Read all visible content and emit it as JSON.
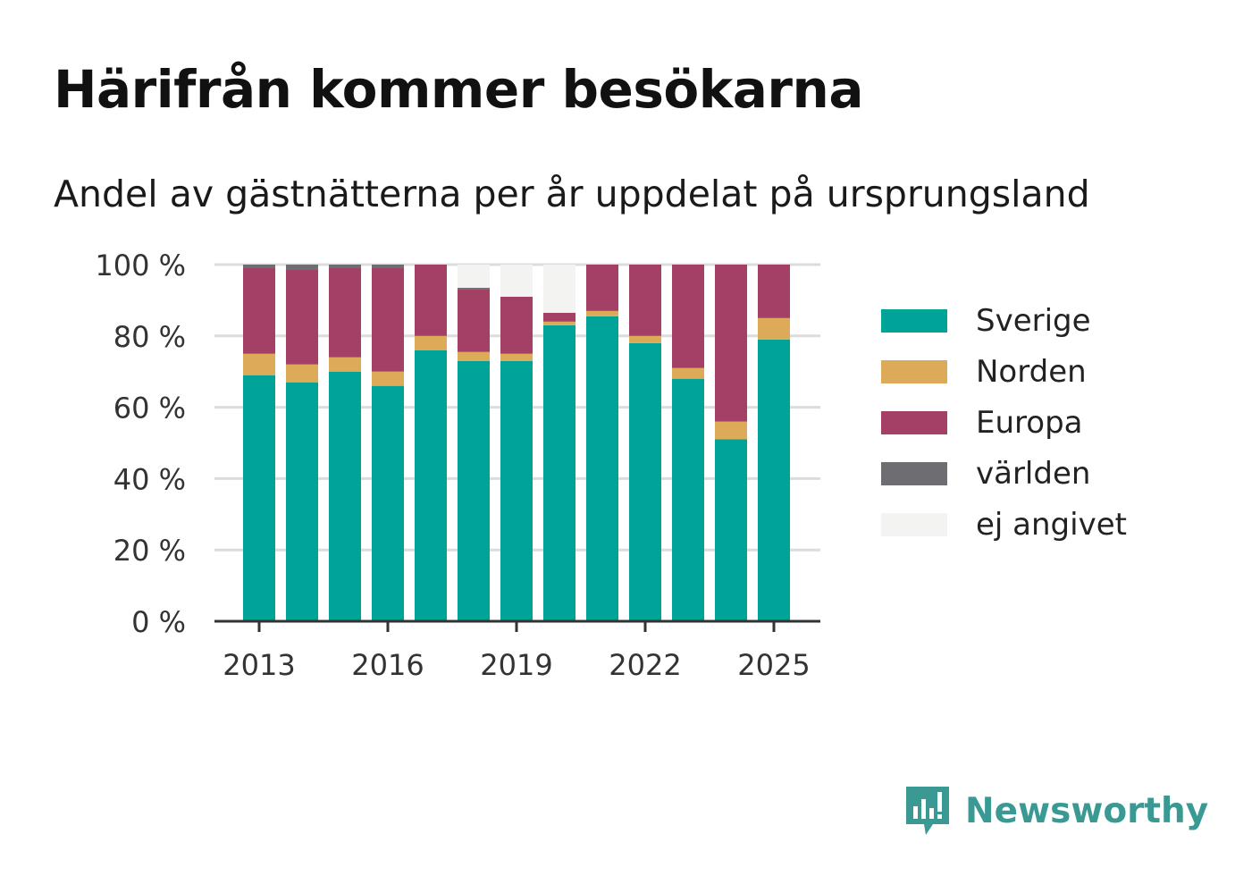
{
  "title": "Härifrån kommer besökarna",
  "subtitle": "Andel av gästnätterna per år uppdelat på ursprungsland",
  "brand": {
    "name": "Newsworthy",
    "logo_icon": "bar-chart-speech-bubble-icon",
    "color": "#3a9a93"
  },
  "chart_data": {
    "type": "bar",
    "stacked": true,
    "categories": [
      "2013",
      "2014",
      "2015",
      "2016",
      "2017",
      "2018",
      "2019",
      "2020",
      "2021",
      "2022",
      "2023",
      "2024",
      "2025"
    ],
    "x_tick_labels": [
      "2013",
      "2016",
      "2019",
      "2022",
      "2025"
    ],
    "y_tick_labels": [
      "0 %",
      "20 %",
      "40 %",
      "60 %",
      "80 %",
      "100 %"
    ],
    "ylim": [
      0,
      100
    ],
    "grid": true,
    "legend_position": "right",
    "series": [
      {
        "name": "Sverige",
        "color": "#00a398",
        "values": [
          69,
          67,
          70,
          66,
          76,
          73,
          73,
          83,
          85.5,
          78,
          68,
          51,
          79
        ]
      },
      {
        "name": "Norden",
        "color": "#dcaa58",
        "values": [
          6,
          5,
          4,
          4,
          4,
          2.5,
          2,
          1,
          1.5,
          2,
          3,
          5,
          6
        ]
      },
      {
        "name": "Europa",
        "color": "#a43f65",
        "values": [
          24,
          26.5,
          25,
          29,
          20,
          17.5,
          16,
          2.5,
          13,
          20,
          29,
          44,
          15
        ]
      },
      {
        "name": "världen",
        "color": "#6e6e72",
        "values": [
          1,
          1.5,
          1,
          1,
          0,
          0.5,
          0,
          0,
          0,
          0,
          0,
          0,
          0
        ]
      },
      {
        "name": "ej angivet",
        "color": "#f3f3f1",
        "values": [
          0,
          0,
          0,
          0,
          0,
          6.5,
          9,
          13.5,
          0,
          0,
          0,
          0,
          0
        ]
      }
    ]
  }
}
